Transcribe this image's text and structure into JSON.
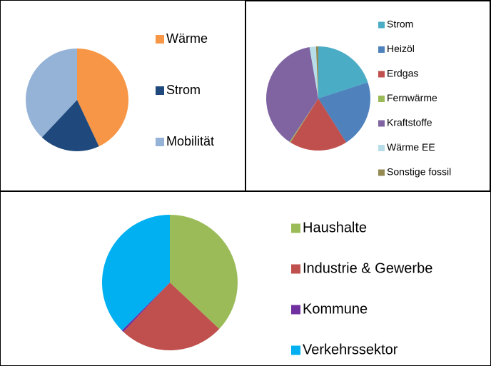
{
  "chart_data": [
    {
      "type": "pie",
      "categories": [
        "Wärme",
        "Strom",
        "Mobilität"
      ],
      "values": [
        43,
        19,
        38
      ],
      "colors": [
        "#f79646",
        "#1f497d",
        "#95b3d7"
      ]
    },
    {
      "type": "pie",
      "categories": [
        "Strom",
        "Heizöl",
        "Erdgas",
        "Fernwärme",
        "Kraftstoffe",
        "Wärme EE",
        "Sonstige fossil"
      ],
      "values": [
        20,
        21,
        18,
        0.3,
        38,
        2,
        0.7
      ],
      "colors": [
        "#4bacc6",
        "#4f81bd",
        "#c0504d",
        "#9bbb59",
        "#8064a2",
        "#b7dee8",
        "#948a54"
      ]
    },
    {
      "type": "pie",
      "categories": [
        "Haushalte",
        "Industrie & Gewerbe",
        "Kommune",
        "Verkehrssektor"
      ],
      "values": [
        37,
        25,
        0.5,
        37.5
      ],
      "colors": [
        "#9bbb59",
        "#c0504d",
        "#7030a0",
        "#00b0f0"
      ]
    }
  ]
}
